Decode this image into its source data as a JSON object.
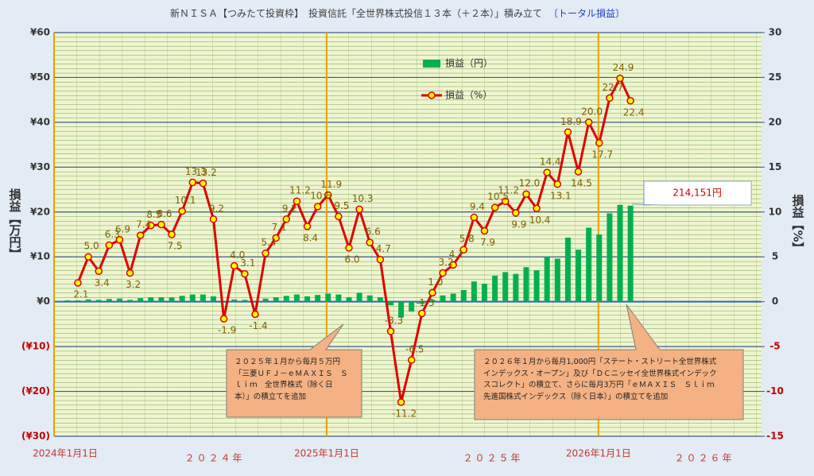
{
  "chart_data": {
    "type": "combo",
    "title": "新ＮＩＳＡ【つみたて投資枠】　投資信託「全世界株式投信１３本（＋２本）」積み立て",
    "subtitle": "〔トータル損益〕",
    "ylabel": "損益【万円】",
    "y2label": "損益【%】",
    "x": [
      "2024-01-05",
      "2024-01-19",
      "2024-02-02",
      "2024-02-16",
      "2024-03-01",
      "2024-03-15",
      "2024-03-29",
      "2024-04-12",
      "2024-04-26",
      "2024-05-10",
      "2024-05-24",
      "2024-06-07",
      "2024-06-21",
      "2024-07-05",
      "2024-07-19",
      "2024-08-02",
      "2024-08-16",
      "2024-08-30",
      "2024-09-13",
      "2024-09-27",
      "2024-10-11",
      "2024-10-25",
      "2024-11-08",
      "2024-11-22",
      "2024-12-06",
      "2024-12-20",
      "2025-01-03",
      "2025-01-17",
      "2025-01-31",
      "2025-02-14",
      "2025-02-28",
      "2025-03-14",
      "2025-03-28",
      "2025-04-11",
      "2025-04-25",
      "2025-05-09",
      "2025-05-23",
      "2025-06-06",
      "2025-06-20",
      "2025-07-04",
      "2025-07-18",
      "2025-08-01",
      "2025-08-15",
      "2025-08-29",
      "2025-09-12",
      "2025-09-26",
      "2025-10-10",
      "2025-10-24",
      "2025-11-07",
      "2025-11-21",
      "2025-12-05",
      "2025-12-19",
      "2026-01-02",
      "2026-01-16",
      "2026-01-30",
      "2026-02-13"
    ],
    "xlim": [
      "2024-01-01",
      "2026-08-08"
    ],
    "xticks": [
      {
        "value": "2024-01-01",
        "label": "2024年1月1日"
      },
      {
        "value": "2025-01-01",
        "label": "2025年1月1日"
      },
      {
        "value": "2026-01-01",
        "label": "2026年1月1日"
      }
    ],
    "year_labels": [
      "２０２４年",
      "２０２５年",
      "２０２６年"
    ],
    "ylim": [
      -30,
      60
    ],
    "yticks": [
      {
        "value": 60,
        "label": "¥60"
      },
      {
        "value": 50,
        "label": "¥50"
      },
      {
        "value": 40,
        "label": "¥40"
      },
      {
        "value": 30,
        "label": "¥30"
      },
      {
        "value": 20,
        "label": "¥20"
      },
      {
        "value": 10,
        "label": "¥10"
      },
      {
        "value": 0,
        "label": "¥0"
      },
      {
        "value": -10,
        "label": "(¥10)"
      },
      {
        "value": -20,
        "label": "(¥20)"
      },
      {
        "value": -30,
        "label": "(¥30)"
      }
    ],
    "y2lim": [
      -15,
      30
    ],
    "y2ticks": [
      30,
      25,
      20,
      15,
      10,
      5,
      0,
      -5,
      -10,
      -15
    ],
    "grid": true,
    "series": [
      {
        "name": "損益（円）",
        "type": "bar",
        "color": "#00b050",
        "values": [
          0.2,
          0.3,
          0.3,
          0.5,
          0.4,
          0.6,
          0.7,
          0.4,
          0.8,
          1.0,
          1.0,
          0.9,
          1.3,
          1.6,
          1.6,
          1.2,
          -0.2,
          0.5,
          0.4,
          -0.2,
          0.7,
          1.0,
          1.3,
          1.6,
          1.2,
          1.5,
          1.8,
          1.6,
          1.0,
          2.0,
          1.4,
          1.0,
          -0.8,
          -3.5,
          -2.2,
          -0.5,
          0.4,
          1.4,
          1.8,
          2.6,
          4.5,
          4.0,
          5.8,
          6.6,
          6.2,
          7.7,
          7.0,
          10.0,
          9.6,
          14.3,
          11.6,
          16.5,
          15.0,
          19.7,
          21.6,
          21.4151
        ],
        "value_labels": [
          null,
          null,
          null,
          null,
          null,
          null,
          null,
          null,
          null,
          null,
          null,
          null,
          null,
          null,
          null,
          null,
          null,
          null,
          null,
          null,
          null,
          null,
          null,
          null,
          null,
          null,
          null,
          null,
          null,
          null,
          null,
          null,
          null,
          null,
          null,
          null,
          null,
          null,
          null,
          null,
          null,
          null,
          null,
          null,
          null,
          null,
          null,
          null,
          null,
          null,
          null,
          null,
          null,
          null,
          null,
          "214,151円"
        ]
      },
      {
        "name": "損益（%）",
        "type": "line",
        "axis": "y2",
        "color": "#e00000",
        "marker_color": "#ffff00",
        "values": [
          null,
          null,
          2.1,
          5.0,
          3.4,
          6.3,
          6.9,
          3.2,
          7.4,
          8.5,
          8.6,
          7.5,
          10.1,
          13.3,
          13.2,
          9.2,
          -1.9,
          4.0,
          3.1,
          -1.4,
          5.4,
          7.1,
          9.2,
          11.2,
          8.4,
          10.6,
          11.9,
          9.5,
          6.0,
          10.3,
          6.6,
          4.7,
          -3.3,
          -11.2,
          -6.5,
          -1.3,
          1.0,
          3.2,
          4.1,
          5.8,
          9.4,
          7.9,
          10.5,
          11.2,
          9.9,
          12.0,
          10.4,
          14.4,
          13.1,
          18.9,
          14.5,
          20.0,
          17.7,
          22.7,
          24.9,
          22.4
        ],
        "value_labels": [
          null,
          null,
          "2.1",
          "5.0",
          "3.4",
          "6.3",
          "6.9",
          "3.2",
          "7.4",
          "8.5",
          "8.6",
          "7.5",
          "10.1",
          "13.3",
          "13.2",
          "9.2",
          "-1.9",
          "4.0",
          "3.1",
          "-1.4",
          "5.4",
          "7.1",
          "9.2",
          "11.2",
          "8.4",
          "10.6",
          "11.9",
          "9.5",
          "6.0",
          "10.3",
          "6.6",
          "4.7",
          "-3.3",
          "-11.2",
          "-6.5",
          "-1.3",
          "1.0",
          "3.2",
          "4.1",
          "5.8",
          "9.4",
          "7.9",
          "10.5",
          "11.2",
          "9.9",
          "12.0",
          "10.4",
          "14.4",
          "13.1",
          "18.9",
          "14.5",
          "20.0",
          "17.7",
          "22.7",
          "24.9",
          "22.4"
        ]
      }
    ],
    "annotations": [
      {
        "lines": [
          "２０２５年１月から毎月５万円",
          "「三菱ＵＦＪ－ｅＭＡＸＩＳ　Ｓ",
          "ｌｉｍ　全世界株式（除く日",
          "本）」の積立てを追加"
        ]
      },
      {
        "lines": [
          "２０２６年１月から毎月1,000円「ステート・ストリート全世界株式",
          "インデックス・オープン」及び「ＤＣニッセイ全世界株式インデック",
          "スコレクト」の積立て、さらに毎月3万円「ｅＭＡＸＩＳ　Ｓｌｉｍ",
          "先進国株式インデックス（除く日本）」の積立てを追加"
        ]
      }
    ]
  }
}
